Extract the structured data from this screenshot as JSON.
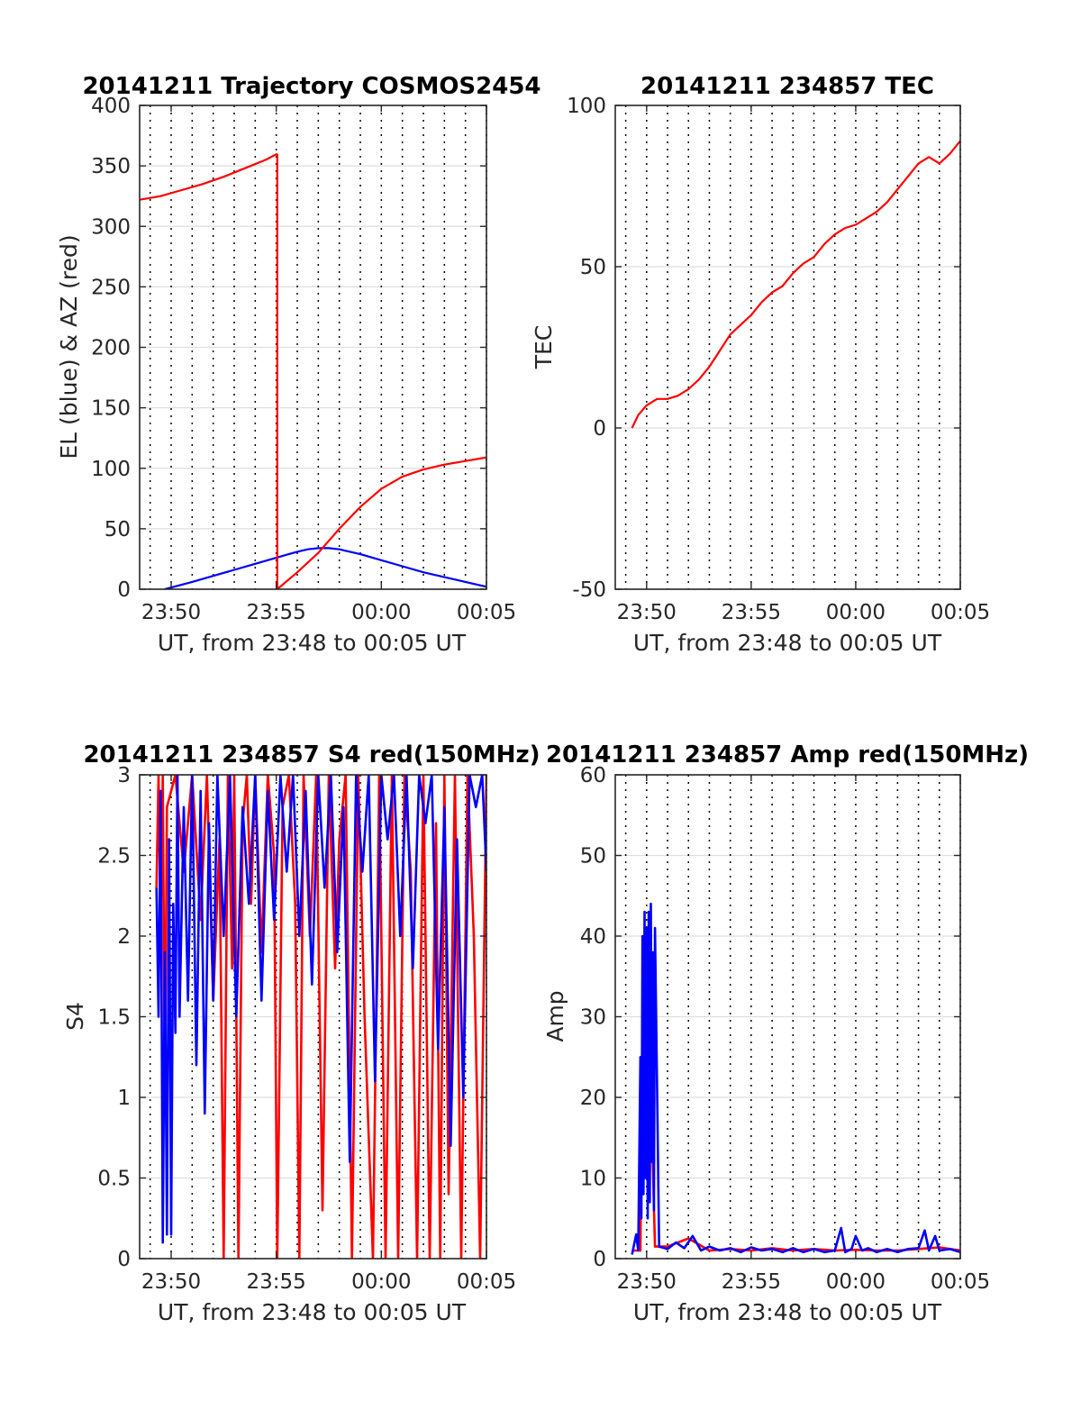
{
  "figure": {
    "background": "#ffffff"
  },
  "chart_data": [
    {
      "id": "trajectory",
      "type": "line",
      "title": "20141211 Trajectory COSMOS2454",
      "xlabel": "UT, from 23:48 to 00:05 UT",
      "ylabel": "EL (blue) & AZ (red)",
      "x_unit": "minutes after 23:48 UT",
      "xlim": [
        0.5,
        17
      ],
      "ylim": [
        0,
        400
      ],
      "x_ticks": [
        {
          "value": 2,
          "label": "23:50"
        },
        {
          "value": 7,
          "label": "23:55"
        },
        {
          "value": 12,
          "label": "00:00"
        },
        {
          "value": 17,
          "label": "00:05"
        }
      ],
      "y_ticks": [
        0,
        50,
        100,
        150,
        200,
        250,
        300,
        350,
        400
      ],
      "grid": {
        "vertical_dotted_minor_every_min": 1,
        "horizontal": true
      },
      "series": [
        {
          "name": "EL (blue)",
          "color": "#0000ff",
          "x": [
            1.7,
            3,
            4,
            5,
            6,
            7,
            7.5,
            8,
            8.5,
            9,
            9.5,
            10,
            11,
            12,
            13,
            14,
            15,
            16,
            17
          ],
          "y": [
            0,
            6,
            11,
            16,
            21,
            26,
            28.5,
            31,
            33,
            34,
            34,
            33,
            29,
            24,
            19,
            14,
            10,
            6,
            2
          ]
        },
        {
          "name": "AZ (red)",
          "color": "#ff0000",
          "segments": [
            {
              "x": [
                0.5,
                1.5,
                2.5,
                3.5,
                4.5,
                5.5,
                6.5,
                7.05
              ],
              "y": [
                322,
                325,
                330,
                335,
                341,
                348,
                355,
                360
              ]
            },
            {
              "x": [
                7.05,
                7.05
              ],
              "y": [
                360,
                0
              ]
            },
            {
              "x": [
                7.05,
                8,
                9,
                10,
                11,
                12,
                13,
                14,
                15,
                16,
                17
              ],
              "y": [
                0,
                14,
                30,
                50,
                68,
                83,
                93,
                99,
                103,
                106,
                109
              ]
            }
          ]
        }
      ]
    },
    {
      "id": "tec",
      "type": "line",
      "title": "20141211 234857 TEC",
      "xlabel": "UT, from 23:48 to 00:05 UT",
      "ylabel": "TEC",
      "x_unit": "minutes after 23:48 UT",
      "xlim": [
        0.5,
        17
      ],
      "ylim": [
        -50,
        100
      ],
      "x_ticks": [
        {
          "value": 2,
          "label": "23:50"
        },
        {
          "value": 7,
          "label": "23:55"
        },
        {
          "value": 12,
          "label": "00:00"
        },
        {
          "value": 17,
          "label": "00:05"
        }
      ],
      "y_ticks": [
        -50,
        0,
        50,
        100
      ],
      "grid": {
        "vertical_dotted_minor_every_min": 1,
        "horizontal": true
      },
      "series": [
        {
          "name": "TEC",
          "color": "#ff0000",
          "x": [
            1.3,
            1.6,
            2,
            2.5,
            3,
            3.5,
            4,
            4.5,
            5,
            5.5,
            6,
            6.5,
            7,
            7.5,
            8,
            8.5,
            9,
            9.5,
            10,
            10.5,
            11,
            11.5,
            12,
            12.5,
            13,
            13.5,
            14,
            14.5,
            15,
            15.5,
            16,
            16.5,
            17
          ],
          "y": [
            0,
            4,
            7,
            9,
            9,
            10,
            12,
            15,
            19,
            24,
            29,
            32,
            35,
            39,
            42,
            44,
            48,
            51,
            53,
            57,
            60,
            62,
            63,
            65,
            67,
            70,
            74,
            78,
            82,
            84,
            82,
            85,
            89
          ]
        }
      ]
    },
    {
      "id": "s4",
      "type": "line",
      "title": "20141211 234857 S4 red(150MHz)",
      "xlabel": "UT, from 23:48 to 00:05 UT",
      "ylabel": "S4",
      "x_unit": "minutes after 23:48 UT",
      "xlim": [
        0.5,
        17
      ],
      "ylim": [
        0,
        3
      ],
      "x_ticks": [
        {
          "value": 2,
          "label": "23:50"
        },
        {
          "value": 7,
          "label": "23:55"
        },
        {
          "value": 12,
          "label": "00:00"
        },
        {
          "value": 17,
          "label": "00:05"
        }
      ],
      "y_ticks": [
        {
          "value": 0,
          "label": "0"
        },
        {
          "value": 0.5,
          "label": "0.5"
        },
        {
          "value": 1,
          "label": "1"
        },
        {
          "value": 1.5,
          "label": "1.5"
        },
        {
          "value": 2,
          "label": "2"
        },
        {
          "value": 2.5,
          "label": "2.5"
        },
        {
          "value": 3,
          "label": "3"
        }
      ],
      "grid": {
        "vertical_dotted_minor_every_min": 1,
        "horizontal": true
      },
      "series": [
        {
          "name": "red",
          "color": "#ff0000",
          "x": [
            1.3,
            1.4,
            1.5,
            1.6,
            1.7,
            1.8,
            2.2,
            2.6,
            3,
            3.4,
            3.7,
            4,
            4.3,
            4.5,
            4.7,
            4.9,
            5,
            5.2,
            5.4,
            5.6,
            5.8,
            6,
            6.3,
            6.6,
            6.9,
            7.05,
            7.3,
            7.6,
            7.9,
            8.1,
            8.3,
            8.6,
            8.9,
            9.2,
            9.5,
            9.8,
            10,
            10.3,
            10.6,
            10.9,
            11.2,
            11.6,
            11.9,
            12.2,
            12.5,
            12.8,
            13.1,
            13.4,
            13.7,
            14,
            14.3,
            14.6,
            14.8,
            15,
            15.2,
            15.5,
            15.8,
            16.1,
            16.4,
            16.7,
            17
          ],
          "y": [
            2.3,
            3,
            2.0,
            3,
            1.0,
            2.8,
            3,
            2.4,
            3,
            2.1,
            3,
            1.6,
            2.6,
            0,
            3,
            1.8,
            3,
            0,
            2.7,
            3,
            2.2,
            3,
            1.9,
            3,
            2.5,
            0,
            2.8,
            3,
            2.2,
            0,
            3,
            2.0,
            3,
            0.3,
            3,
            1.8,
            2.6,
            3,
            0,
            3,
            1.5,
            0,
            3,
            0,
            3,
            0,
            3,
            2.4,
            0,
            3,
            0,
            2.7,
            0,
            3,
            0.4,
            3,
            0,
            3,
            2.0,
            0,
            3
          ]
        },
        {
          "name": "blue",
          "color": "#0000ff",
          "x": [
            1.3,
            1.4,
            1.5,
            1.6,
            1.7,
            1.8,
            1.9,
            2.0,
            2.1,
            2.2,
            2.3,
            2.4,
            2.6,
            2.8,
            3,
            3.2,
            3.4,
            3.6,
            3.8,
            4,
            4.2,
            4.5,
            4.8,
            5.1,
            5.4,
            5.7,
            6,
            6.3,
            6.6,
            6.9,
            7.2,
            7.5,
            7.8,
            8.1,
            8.4,
            8.7,
            9,
            9.3,
            9.6,
            9.9,
            10.2,
            10.5,
            10.8,
            11.1,
            11.4,
            11.7,
            12,
            12.3,
            12.6,
            12.9,
            13.2,
            13.5,
            13.8,
            14.1,
            14.4,
            14.7,
            15,
            15.3,
            15.6,
            15.9,
            16.2,
            16.5,
            16.8,
            17
          ],
          "y": [
            2.3,
            1.5,
            2.9,
            0.1,
            1.9,
            0.15,
            2.6,
            0.15,
            2.2,
            1.4,
            3,
            1.5,
            2.8,
            1.6,
            3,
            1.2,
            2.9,
            0.9,
            2.7,
            1.6,
            3,
            2.0,
            3,
            1.5,
            2.8,
            2.2,
            3,
            1.6,
            2.9,
            2.1,
            3,
            2.4,
            3,
            2.0,
            2.9,
            1.7,
            3,
            2.3,
            3,
            1.9,
            2.8,
            0.6,
            3,
            2.4,
            3,
            1.1,
            3,
            2.6,
            3,
            2.0,
            3,
            1.8,
            3,
            2.7,
            3,
            1.3,
            2.8,
            0.7,
            2.6,
            1.0,
            3,
            2.8,
            3,
            2.4
          ]
        }
      ]
    },
    {
      "id": "amp",
      "type": "line",
      "title": "20141211 234857 Amp red(150MHz)",
      "xlabel": "UT, from 23:48 to 00:05 UT",
      "ylabel": "Amp",
      "x_unit": "minutes after 23:48 UT",
      "xlim": [
        0.5,
        17
      ],
      "ylim": [
        0,
        60
      ],
      "x_ticks": [
        {
          "value": 2,
          "label": "23:50"
        },
        {
          "value": 7,
          "label": "23:55"
        },
        {
          "value": 12,
          "label": "00:00"
        },
        {
          "value": 17,
          "label": "00:05"
        }
      ],
      "y_ticks": [
        0,
        10,
        20,
        30,
        40,
        50,
        60
      ],
      "grid": {
        "vertical_dotted_minor_every_min": 1,
        "horizontal": true
      },
      "series": [
        {
          "name": "red",
          "color": "#ff0000",
          "x": [
            1.3,
            1.7,
            1.8,
            2.0,
            2.4,
            3,
            4,
            5,
            6,
            7,
            8,
            9,
            10,
            11,
            12,
            13,
            14,
            15,
            16,
            17
          ],
          "y": [
            1,
            1,
            30,
            40,
            1.5,
            1.5,
            2.5,
            1,
            1.2,
            1,
            1.3,
            1,
            1.2,
            1,
            1.1,
            1,
            1,
            1.2,
            1.4,
            1
          ],
          "bursts": []
        },
        {
          "name": "blue",
          "color": "#0000ff",
          "x": [
            1.3,
            1.5,
            1.6,
            1.7,
            1.75,
            1.8,
            1.85,
            1.9,
            1.95,
            2.0,
            2.05,
            2.1,
            2.15,
            2.2,
            2.25,
            2.3,
            2.35,
            2.4,
            2.6,
            3,
            3.4,
            3.8,
            4.2,
            4.6,
            5,
            5.5,
            6,
            6.5,
            7,
            7.5,
            8,
            8.5,
            9,
            9.5,
            10,
            10.5,
            11,
            11.3,
            11.5,
            11.8,
            12,
            12.3,
            12.6,
            13,
            13.5,
            14,
            14.5,
            15,
            15.3,
            15.5,
            15.8,
            16,
            16.5,
            17
          ],
          "y": [
            0.5,
            3,
            1,
            25,
            5,
            40,
            8,
            43,
            10,
            41,
            5,
            43,
            7,
            44,
            12,
            38,
            6,
            41,
            1.5,
            1.2,
            2,
            1.3,
            2.8,
            1,
            1.5,
            1,
            1.3,
            0.8,
            1.4,
            1,
            1.2,
            0.8,
            1.3,
            0.8,
            1.2,
            0.8,
            1,
            3.8,
            0.8,
            1.2,
            2.8,
            1,
            1.3,
            0.8,
            1.2,
            0.8,
            1.2,
            1.3,
            3.5,
            1,
            2.8,
            1,
            1.2,
            0.8
          ]
        }
      ]
    }
  ]
}
